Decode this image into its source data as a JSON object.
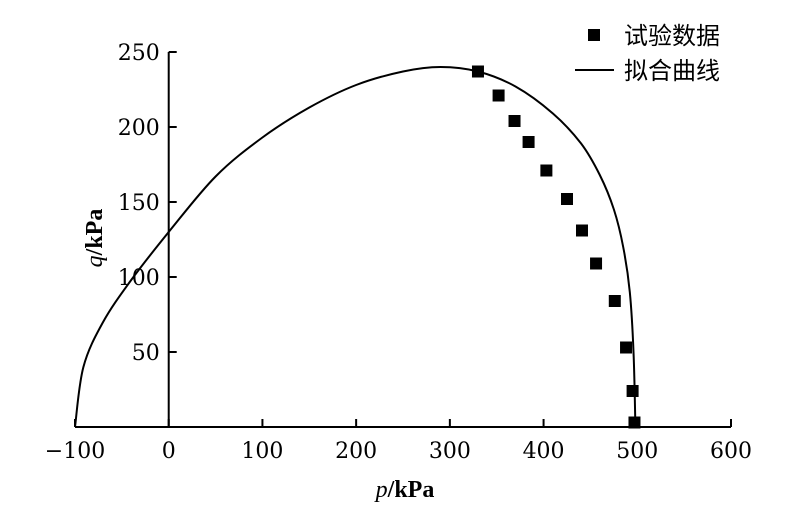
{
  "chart_data": {
    "type": "scatter",
    "xlabel": {
      "var": "p",
      "unit": "/kPa"
    },
    "ylabel": {
      "var": "q",
      "unit": "/kPa"
    },
    "xlim": [
      -100,
      600
    ],
    "ylim": [
      0,
      250
    ],
    "xticks": [
      -100,
      0,
      100,
      200,
      300,
      400,
      500,
      600
    ],
    "xtick_labels": [
      "−100",
      "0",
      "100",
      "200",
      "300",
      "400",
      "500",
      "600"
    ],
    "yticks": [
      50,
      100,
      150,
      200,
      250
    ],
    "ytick_labels": [
      "50",
      "100",
      "150",
      "200",
      "250"
    ],
    "grid": false,
    "legend_position": "top-right",
    "series": [
      {
        "name": "试验数据",
        "kind": "scatter",
        "marker": "square",
        "color": "#000000",
        "x": [
          330,
          352,
          369,
          384,
          403,
          425,
          441,
          456,
          476,
          488,
          495,
          497
        ],
        "y": [
          237,
          221,
          204,
          190,
          171,
          152,
          131,
          109,
          84,
          53,
          24,
          3
        ]
      },
      {
        "name": "拟合曲线",
        "kind": "line",
        "color": "#000000",
        "x": [
          -100,
          -91,
          -70,
          -40,
          0,
          50,
          100,
          150,
          200,
          250,
          290,
          330,
          370,
          410,
          440,
          460,
          475,
          485,
          492,
          496,
          498
        ],
        "y": [
          0,
          40,
          70,
          98,
          130,
          167,
          193,
          213,
          228,
          237,
          240,
          237,
          227,
          209,
          189,
          168,
          145,
          120,
          90,
          50,
          0
        ]
      }
    ]
  }
}
